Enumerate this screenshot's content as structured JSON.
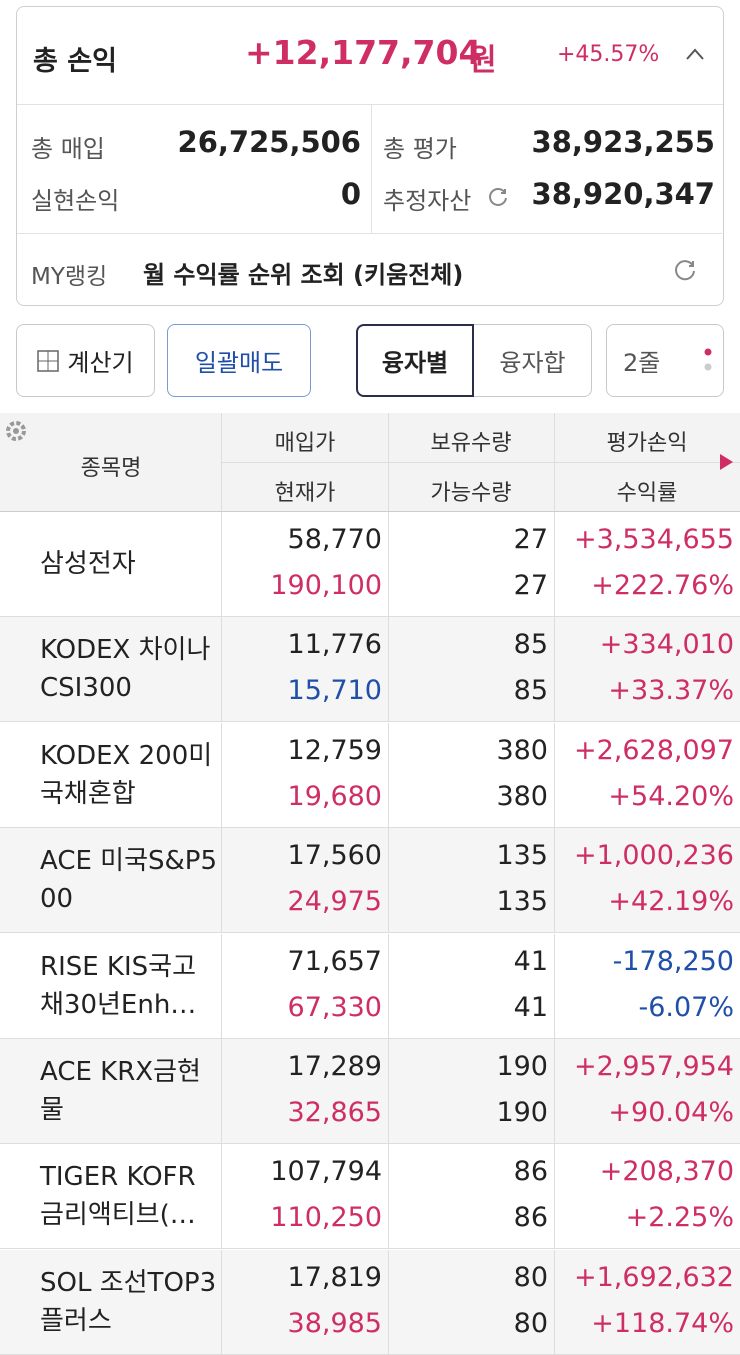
{
  "summary": {
    "label": "총 손익",
    "amount": "+12,177,704",
    "unit": "원",
    "rate": "+45.57%",
    "items": [
      {
        "label": "총 매입",
        "value": "26,725,506"
      },
      {
        "label": "총 평가",
        "value": "38,923,255"
      },
      {
        "label": "실현손익",
        "value": "0"
      },
      {
        "label": "추정자산",
        "value": "38,920,347"
      }
    ],
    "ranking_label": "MY랭킹",
    "ranking_text": "월 수익률 순위 조회 (키움전체)"
  },
  "buttons": {
    "calculator": "계산기",
    "sell_all": "일괄매도",
    "by_loan": "융자별",
    "loan_sum": "융자합",
    "lines": "2줄"
  },
  "table": {
    "headers": {
      "name": "종목명",
      "buy_price": "매입가",
      "current_price": "현재가",
      "quantity": "보유수량",
      "available": "가능수량",
      "pnl": "평가손익",
      "rate": "수익률"
    },
    "rows": [
      {
        "name": "삼성전자",
        "buy_price": "58,770",
        "current_price": "190,100",
        "quantity": "27",
        "available": "27",
        "pnl": "+3,534,655",
        "rate": "+222.76%",
        "price_color": "#cf2e64",
        "pnl_color": "#cf2e64"
      },
      {
        "name": "KODEX 차이나CSI300",
        "buy_price": "11,776",
        "current_price": "15,710",
        "quantity": "85",
        "available": "85",
        "pnl": "+334,010",
        "rate": "+33.37%",
        "price_color": "#1f4fa8",
        "pnl_color": "#cf2e64"
      },
      {
        "name": "KODEX 200미국채혼합",
        "buy_price": "12,759",
        "current_price": "19,680",
        "quantity": "380",
        "available": "380",
        "pnl": "+2,628,097",
        "rate": "+54.20%",
        "price_color": "#cf2e64",
        "pnl_color": "#cf2e64"
      },
      {
        "name": "ACE 미국S&P500",
        "buy_price": "17,560",
        "current_price": "24,975",
        "quantity": "135",
        "available": "135",
        "pnl": "+1,000,236",
        "rate": "+42.19%",
        "price_color": "#cf2e64",
        "pnl_color": "#cf2e64"
      },
      {
        "name": "RISE KIS국고채30년Enh…",
        "buy_price": "71,657",
        "current_price": "67,330",
        "quantity": "41",
        "available": "41",
        "pnl": "-178,250",
        "rate": "-6.07%",
        "price_color": "#cf2e64",
        "pnl_color": "#1f4fa8"
      },
      {
        "name": "ACE KRX금현물",
        "buy_price": "17,289",
        "current_price": "32,865",
        "quantity": "190",
        "available": "190",
        "pnl": "+2,957,954",
        "rate": "+90.04%",
        "price_color": "#cf2e64",
        "pnl_color": "#cf2e64"
      },
      {
        "name": "TIGER KOFR금리액티브(…",
        "buy_price": "107,794",
        "current_price": "110,250",
        "quantity": "86",
        "available": "86",
        "pnl": "+208,370",
        "rate": "+2.25%",
        "price_color": "#cf2e64",
        "pnl_color": "#cf2e64"
      },
      {
        "name": "SOL 조선TOP3플러스",
        "buy_price": "17,819",
        "current_price": "38,985",
        "quantity": "80",
        "available": "80",
        "pnl": "+1,692,632",
        "rate": "+118.74%",
        "price_color": "#cf2e64",
        "pnl_color": "#cf2e64"
      }
    ]
  }
}
